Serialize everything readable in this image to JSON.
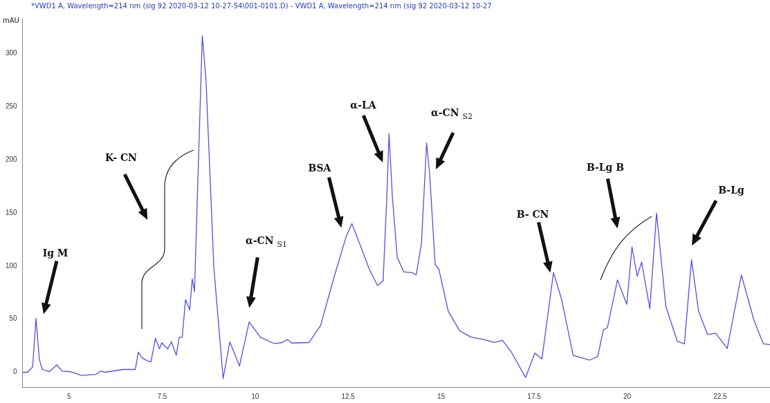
{
  "chart_data": {
    "type": "line",
    "title": "*VWD1 A, Wavelength=214 nm (sig 92 2020-03-12 10-27-54\\001-0101.D) - VWD1 A, Wavelength=214 nm (sig 92 2020-03-12 10-27",
    "ylabel": "mAU",
    "x": [
      3.75,
      3.88,
      4.02,
      4.11,
      4.2,
      4.28,
      4.47,
      4.67,
      4.81,
      5.03,
      5.34,
      5.72,
      5.84,
      5.96,
      6.46,
      6.78,
      6.86,
      6.96,
      7.09,
      7.2,
      7.32,
      7.43,
      7.49,
      7.65,
      7.75,
      7.88,
      7.96,
      8.04,
      8.13,
      8.24,
      8.31,
      8.37,
      8.58,
      8.68,
      8.89,
      9.14,
      9.32,
      9.58,
      9.84,
      10.14,
      10.51,
      10.73,
      10.87,
      10.98,
      11.45,
      11.76,
      12.13,
      12.45,
      12.6,
      12.76,
      13.07,
      13.29,
      13.44,
      13.54,
      13.6,
      13.69,
      13.82,
      14.0,
      14.22,
      14.33,
      14.47,
      14.61,
      14.69,
      14.84,
      14.94,
      15.19,
      15.5,
      15.81,
      16.12,
      16.43,
      16.65,
      16.87,
      17.27,
      17.52,
      17.71,
      18.02,
      18.24,
      18.55,
      18.99,
      19.21,
      19.36,
      19.47,
      19.74,
      19.99,
      20.13,
      20.27,
      20.39,
      20.61,
      20.79,
      21.04,
      21.35,
      21.54,
      21.73,
      21.92,
      22.16,
      22.38,
      22.69,
      23.07,
      23.41,
      23.66,
      23.84
    ],
    "series": [
      {
        "color": "#5050e6",
        "values": [
          0,
          0,
          5,
          50.7,
          12,
          2.6,
          0.5,
          7,
          1,
          0.5,
          -3,
          -2,
          1,
          0,
          2.6,
          2.6,
          19,
          13.6,
          11,
          9.7,
          32,
          22,
          27.7,
          22,
          28.7,
          16,
          33,
          33,
          68.5,
          58.7,
          88,
          76,
          317,
          275,
          99,
          -6,
          28.5,
          6,
          47.5,
          33,
          27,
          28,
          31,
          27.5,
          28,
          44,
          90.5,
          128,
          140,
          125.7,
          97,
          81.7,
          86,
          165,
          224.6,
          165,
          108,
          94.5,
          93.8,
          91.6,
          121,
          215.8,
          187,
          101.5,
          97,
          57.5,
          39,
          33,
          31,
          28,
          30,
          20,
          -5,
          18,
          12.5,
          93.8,
          68.5,
          15.8,
          11.4,
          14.7,
          40,
          42,
          87,
          64,
          118,
          90.5,
          103.7,
          59.8,
          149.8,
          62,
          29,
          26.8,
          106,
          57.5,
          35.6,
          36.7,
          22.4,
          91.6,
          48.8,
          26.8,
          26
        ]
      }
    ],
    "xlim": [
      3.75,
      23.84
    ],
    "ylim": [
      -14,
      333
    ],
    "xticks": [
      5,
      7.5,
      10,
      12.5,
      15,
      17.5,
      20,
      22.5
    ],
    "yticks": [
      0,
      50,
      100,
      150,
      200,
      250,
      300
    ],
    "grid": false,
    "legend": false,
    "annotations": [
      "Ig M",
      "K- CN",
      "α-CN $_{S1}$",
      "BSA",
      "α-LA",
      "α-CN $_{S2}$",
      "B- CN",
      "B-Lg B",
      "B-Lg"
    ]
  }
}
